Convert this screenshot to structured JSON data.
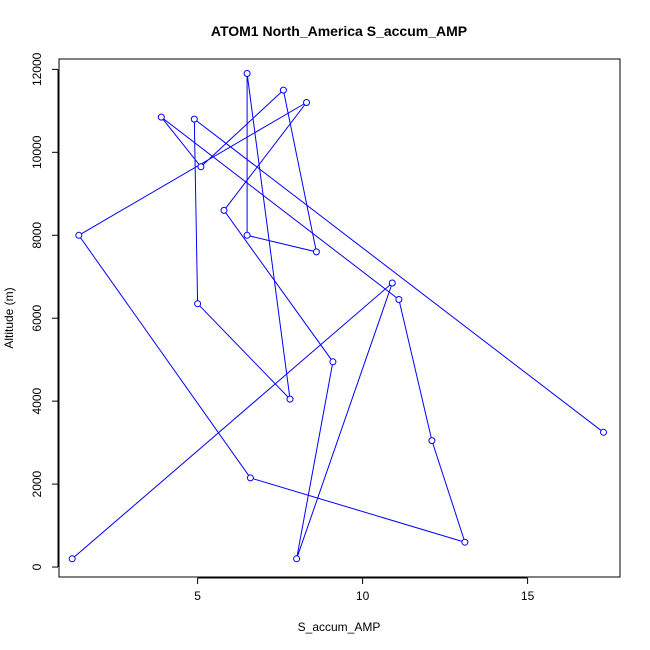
{
  "chart_data": {
    "type": "line",
    "title": "ATOM1 North_America S_accum_AMP",
    "xlabel": "S_accum_AMP",
    "ylabel": "Altitude (m)",
    "xlim": [
      0.8,
      17.8
    ],
    "ylim": [
      -240,
      12250
    ],
    "xticks": [
      5,
      10,
      15
    ],
    "yticks": [
      0,
      2000,
      4000,
      6000,
      8000,
      10000,
      12000
    ],
    "series": [
      {
        "color": "#0000ff",
        "marker": "open-circle",
        "points": [
          {
            "x": 1.2,
            "y": 200
          },
          {
            "x": 10.9,
            "y": 6850
          },
          {
            "x": 8.0,
            "y": 200
          },
          {
            "x": 9.1,
            "y": 4950
          },
          {
            "x": 5.8,
            "y": 8600
          },
          {
            "x": 8.3,
            "y": 11200
          },
          {
            "x": 1.4,
            "y": 8000
          },
          {
            "x": 6.6,
            "y": 2150
          },
          {
            "x": 13.1,
            "y": 600
          },
          {
            "x": 12.1,
            "y": 3050
          },
          {
            "x": 11.1,
            "y": 6450
          },
          {
            "x": 3.9,
            "y": 10850
          },
          {
            "x": 5.1,
            "y": 9650
          },
          {
            "x": 7.6,
            "y": 11500
          },
          {
            "x": 8.6,
            "y": 7600
          },
          {
            "x": 6.5,
            "y": 8000
          },
          {
            "x": 6.5,
            "y": 11900
          },
          {
            "x": 7.8,
            "y": 4050
          },
          {
            "x": 5.0,
            "y": 6350
          },
          {
            "x": 4.9,
            "y": 10800
          },
          {
            "x": 17.3,
            "y": 3250
          }
        ]
      }
    ]
  }
}
